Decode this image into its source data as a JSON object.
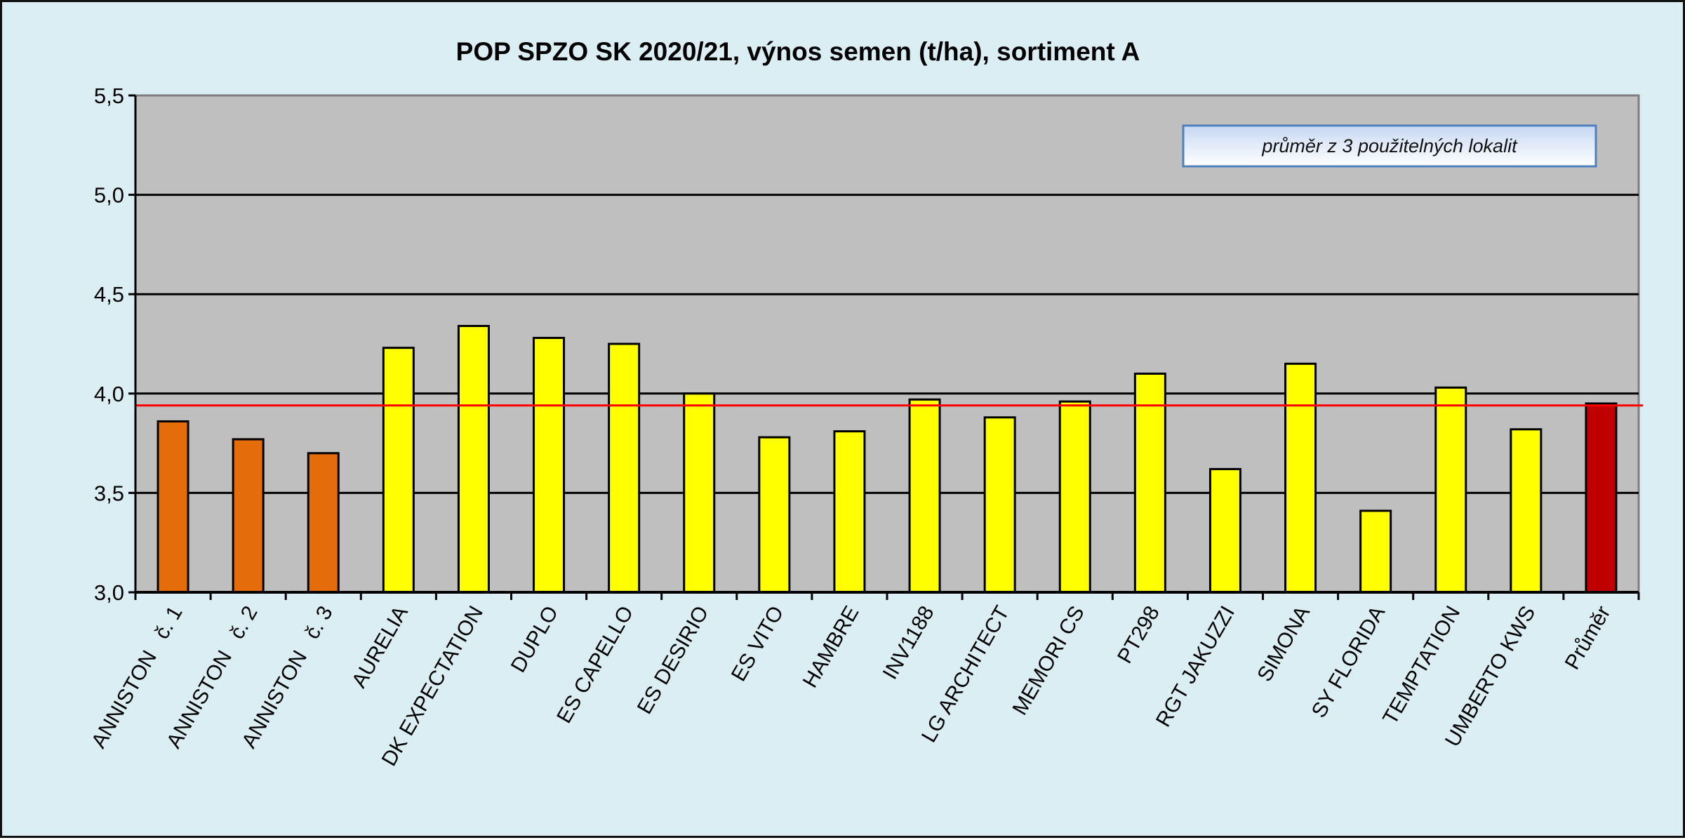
{
  "chart_data": {
    "type": "bar",
    "title": "POP SPZO SK 2020/21, výnos semen (t/ha), sortiment A",
    "xlabel": "",
    "ylabel": "",
    "ylim": [
      3.0,
      5.5
    ],
    "yticks": [
      "3,0",
      "3,5",
      "4,0",
      "4,5",
      "5,0",
      "5,5"
    ],
    "grid": true,
    "categories": [
      "ANNISTON   č. 1",
      "ANNISTON   č. 2",
      "ANNISTON   č. 3",
      "AURELIA",
      "DK EXPECTATION",
      "DUPLO",
      "ES CAPELLO",
      "ES DESIRIO",
      "ES VITO",
      "HAMBRE",
      "INV1188",
      "LG ARCHITECT",
      "MEMORI CS",
      "PT298",
      "RGT JAKUZZI",
      "SIMONA",
      "SY FLORIDA",
      "TEMPTATION",
      "UMBERTO KWS",
      "Průměr"
    ],
    "values": [
      3.86,
      3.77,
      3.7,
      4.23,
      4.34,
      4.28,
      4.25,
      4.0,
      3.78,
      3.81,
      3.97,
      3.88,
      3.96,
      4.1,
      3.62,
      4.15,
      3.41,
      4.03,
      3.82,
      3.95
    ],
    "bar_colors": [
      "#e46c0a",
      "#e46c0a",
      "#e46c0a",
      "#ffff00",
      "#ffff00",
      "#ffff00",
      "#ffff00",
      "#ffff00",
      "#ffff00",
      "#ffff00",
      "#ffff00",
      "#ffff00",
      "#ffff00",
      "#ffff00",
      "#ffff00",
      "#ffff00",
      "#ffff00",
      "#ffff00",
      "#ffff00",
      "#c00000"
    ],
    "reference_line": {
      "value": 3.94,
      "color": "#ff0000"
    },
    "annotation": "průměr z 3 použitelných lokalit",
    "plot_background": "#bfbfbf",
    "page_background": "#dbeef4"
  }
}
